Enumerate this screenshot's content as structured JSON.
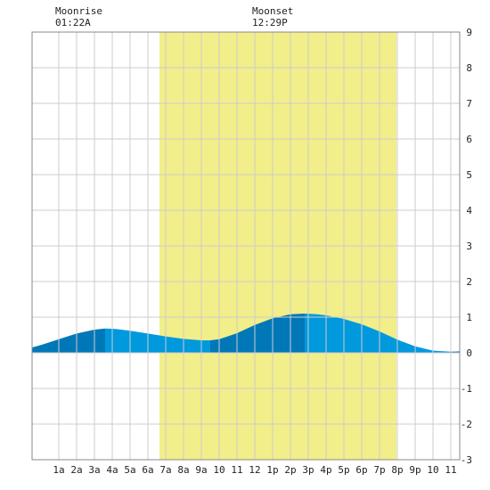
{
  "header": {
    "moonrise_label": "Moonrise",
    "moonrise_time": "01:22A",
    "moonset_label": "Moonset",
    "moonset_time": "12:29P"
  },
  "chart_data": {
    "type": "area",
    "x_unit": "hour of day",
    "xlim": [
      -0.5,
      23.5
    ],
    "ylim": [
      -3,
      9
    ],
    "y_ticks": [
      9,
      8,
      7,
      6,
      5,
      4,
      3,
      2,
      1,
      0,
      -1,
      -2,
      -3
    ],
    "x_ticks": [
      {
        "x": 1,
        "label": "1a"
      },
      {
        "x": 2,
        "label": "2a"
      },
      {
        "x": 3,
        "label": "3a"
      },
      {
        "x": 4,
        "label": "4a"
      },
      {
        "x": 5,
        "label": "5a"
      },
      {
        "x": 6,
        "label": "6a"
      },
      {
        "x": 7,
        "label": "7a"
      },
      {
        "x": 8,
        "label": "8a"
      },
      {
        "x": 9,
        "label": "9a"
      },
      {
        "x": 10,
        "label": "10"
      },
      {
        "x": 11,
        "label": "11"
      },
      {
        "x": 12,
        "label": "12"
      },
      {
        "x": 13,
        "label": "1p"
      },
      {
        "x": 14,
        "label": "2p"
      },
      {
        "x": 15,
        "label": "3p"
      },
      {
        "x": 16,
        "label": "4p"
      },
      {
        "x": 17,
        "label": "5p"
      },
      {
        "x": 18,
        "label": "6p"
      },
      {
        "x": 19,
        "label": "7p"
      },
      {
        "x": 20,
        "label": "8p"
      },
      {
        "x": 21,
        "label": "9p"
      },
      {
        "x": 22,
        "label": "10"
      },
      {
        "x": 23,
        "label": "11"
      }
    ],
    "daylight": {
      "start": 6.65,
      "end": 19.95
    },
    "grid": true,
    "series": [
      {
        "x": [
          -0.5,
          0,
          1,
          2,
          3,
          3.6,
          4.2,
          5,
          6,
          7,
          8,
          9,
          9.5,
          10,
          11,
          12,
          13,
          14,
          14.8,
          15.5,
          16,
          17,
          18,
          19,
          20,
          21,
          22,
          23,
          23.5
        ],
        "values": [
          0.15,
          0.22,
          0.38,
          0.54,
          0.65,
          0.68,
          0.67,
          0.62,
          0.54,
          0.46,
          0.39,
          0.35,
          0.35,
          0.38,
          0.55,
          0.78,
          0.97,
          1.08,
          1.1,
          1.08,
          1.05,
          0.95,
          0.8,
          0.6,
          0.37,
          0.18,
          0.06,
          0.03,
          0.04
        ]
      }
    ],
    "colors": {
      "daylight": "#f2ee8a",
      "tide": "#0099dd",
      "tide_dark": "#0078b8",
      "grid": "#cccccc",
      "frame": "#888888"
    }
  }
}
